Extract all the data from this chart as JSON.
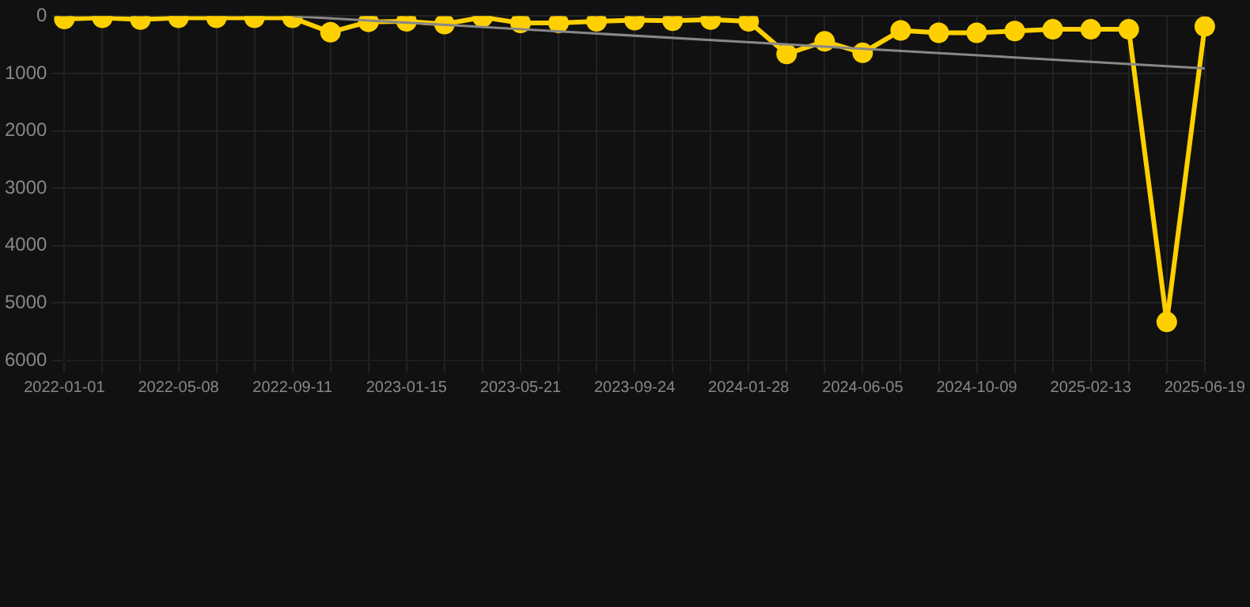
{
  "chart_data": {
    "type": "line",
    "categories": [
      "2022-01-01",
      null,
      null,
      "2022-05-08",
      null,
      null,
      "2022-09-11",
      null,
      null,
      "2023-01-15",
      null,
      null,
      "2023-05-21",
      null,
      null,
      "2023-09-24",
      null,
      null,
      "2024-01-28",
      null,
      null,
      "2024-06-05",
      null,
      null,
      "2024-10-09",
      null,
      null,
      "2025-02-13",
      null,
      null,
      "2025-06-19"
    ],
    "series": [
      {
        "color": "#ffd000",
        "marker": "circle",
        "values": [
          50,
          30,
          60,
          30,
          30,
          30,
          30,
          280,
          100,
          90,
          140,
          20,
          120,
          120,
          90,
          70,
          80,
          60,
          90,
          660,
          440,
          640,
          250,
          290,
          290,
          260,
          230,
          230,
          230,
          5330,
          180
        ]
      },
      {
        "color": "#888888",
        "marker": "none",
        "values": [
          null,
          null,
          null,
          null,
          null,
          null,
          0,
          null,
          null,
          null,
          null,
          null,
          null,
          null,
          null,
          null,
          null,
          null,
          null,
          null,
          null,
          null,
          null,
          null,
          null,
          null,
          null,
          null,
          null,
          null,
          910
        ]
      }
    ],
    "ylim": [
      6000,
      0
    ],
    "yticks": [
      0,
      1000,
      2000,
      3000,
      4000,
      5000,
      6000
    ],
    "grid": true
  }
}
